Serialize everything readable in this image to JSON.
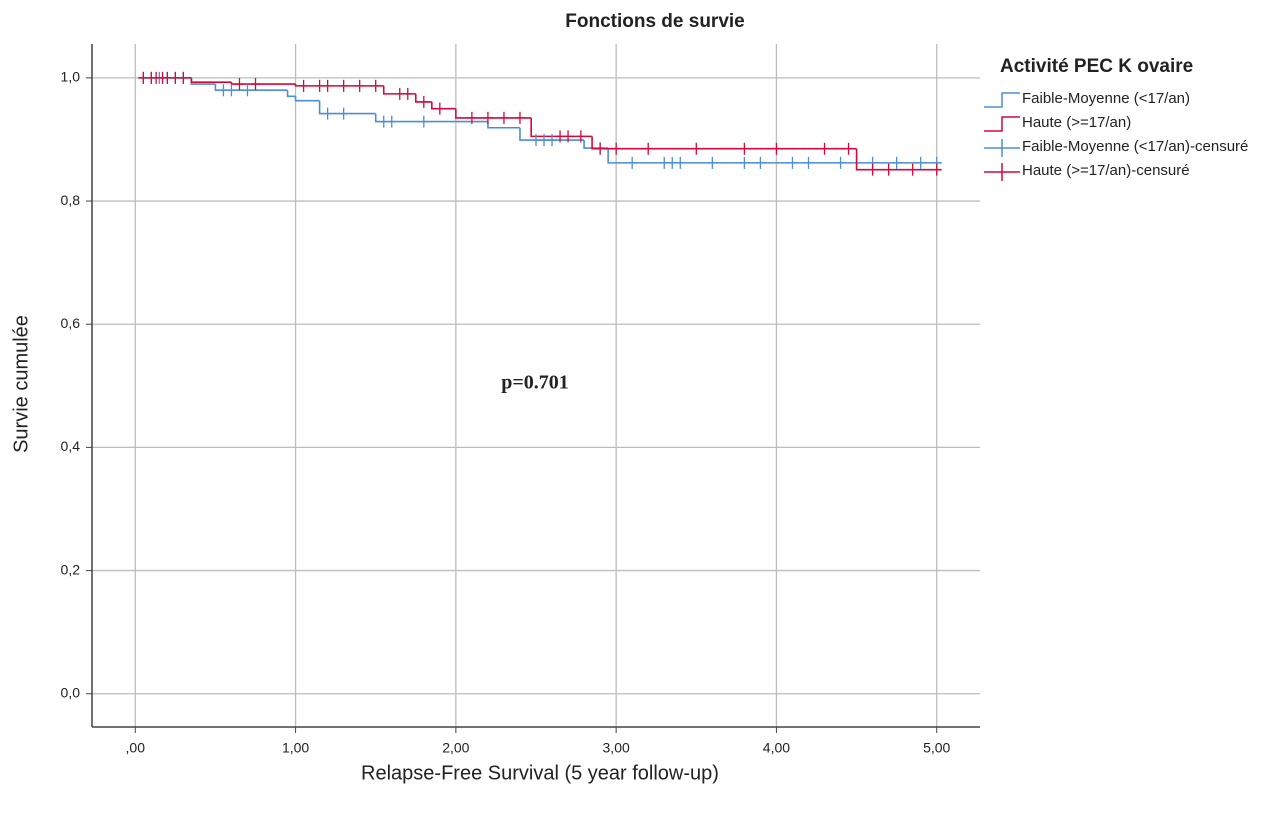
{
  "chart_data": {
    "type": "km",
    "title": "Fonctions de survie",
    "x_label": "Relapse-Free Survival (5 year follow-up)",
    "y_label": "Survie cumulée",
    "legend_title": "Activité PEC K ovaire",
    "annotation": "p=0.701",
    "xlim": [
      -0.27,
      5.27
    ],
    "ylim": [
      -0.054,
      1.055
    ],
    "xticks": [
      {
        "value": 0,
        "label": ",00"
      },
      {
        "value": 1,
        "label": "1,00"
      },
      {
        "value": 2,
        "label": "2,00"
      },
      {
        "value": 3,
        "label": "3,00"
      },
      {
        "value": 4,
        "label": "4,00"
      },
      {
        "value": 5,
        "label": "5,00"
      }
    ],
    "yticks": [
      {
        "value": 0,
        "label": "0,0"
      },
      {
        "value": 0.2,
        "label": "0,2"
      },
      {
        "value": 0.4,
        "label": "0,4"
      },
      {
        "value": 0.6,
        "label": "0,6"
      },
      {
        "value": 0.8,
        "label": "0,8"
      },
      {
        "value": 1,
        "label": "1,0"
      }
    ],
    "grid": true,
    "series": [
      {
        "name": "Faible-Moyenne  (<17/an)",
        "color": "#4a8fd8",
        "style": "step",
        "x": [
          0.02,
          0.35,
          0.5,
          0.95,
          1.0,
          1.15,
          1.5,
          2.2,
          2.4,
          2.8,
          2.95,
          5.03
        ],
        "values": [
          1.0,
          0.99,
          0.98,
          0.97,
          0.963,
          0.942,
          0.929,
          0.919,
          0.899,
          0.886,
          0.862,
          0.862
        ]
      },
      {
        "name": "Haute (>=17/an)",
        "color": "#d6083b",
        "style": "step",
        "x": [
          0.02,
          0.35,
          0.6,
          1.0,
          1.55,
          1.75,
          1.85,
          2.0,
          2.47,
          2.85,
          4.5,
          5.03
        ],
        "values": [
          1.0,
          0.993,
          0.99,
          0.987,
          0.974,
          0.961,
          0.95,
          0.935,
          0.905,
          0.885,
          0.851,
          0.851
        ]
      },
      {
        "name": "Faible-Moyenne  (<17/an)-censuré",
        "color": "#4a8fd8",
        "style": "censor",
        "x": [
          0.05,
          0.1,
          0.15,
          0.2,
          0.25,
          0.3,
          0.55,
          0.6,
          0.7,
          1.2,
          1.3,
          1.55,
          1.6,
          1.8,
          2.5,
          2.55,
          2.6,
          2.9,
          3.1,
          3.3,
          3.35,
          3.4,
          3.6,
          3.8,
          3.9,
          4.1,
          4.2,
          4.4,
          4.6,
          4.75,
          4.9,
          5.0
        ],
        "values": [
          1.0,
          1.0,
          1.0,
          1.0,
          1.0,
          1.0,
          0.98,
          0.98,
          0.98,
          0.942,
          0.942,
          0.929,
          0.929,
          0.929,
          0.899,
          0.899,
          0.899,
          0.886,
          0.862,
          0.862,
          0.862,
          0.862,
          0.862,
          0.862,
          0.862,
          0.862,
          0.862,
          0.862,
          0.862,
          0.862,
          0.862,
          0.862
        ]
      },
      {
        "name": "Haute (>=17/an)-censuré",
        "color": "#d6083b",
        "style": "censor",
        "x": [
          0.05,
          0.1,
          0.13,
          0.17,
          0.2,
          0.25,
          0.3,
          0.65,
          0.75,
          1.05,
          1.15,
          1.2,
          1.3,
          1.4,
          1.5,
          1.65,
          1.7,
          1.8,
          1.9,
          2.1,
          2.2,
          2.3,
          2.4,
          2.65,
          2.7,
          2.78,
          2.9,
          3.0,
          3.2,
          3.5,
          3.8,
          4.0,
          4.3,
          4.45,
          4.6,
          4.7,
          4.85,
          5.0
        ],
        "values": [
          1.0,
          1.0,
          1.0,
          1.0,
          1.0,
          1.0,
          1.0,
          0.99,
          0.99,
          0.987,
          0.987,
          0.987,
          0.987,
          0.987,
          0.987,
          0.974,
          0.974,
          0.961,
          0.95,
          0.935,
          0.935,
          0.935,
          0.935,
          0.905,
          0.905,
          0.905,
          0.885,
          0.885,
          0.885,
          0.885,
          0.885,
          0.885,
          0.885,
          0.885,
          0.851,
          0.851,
          0.851,
          0.851
        ]
      }
    ]
  }
}
